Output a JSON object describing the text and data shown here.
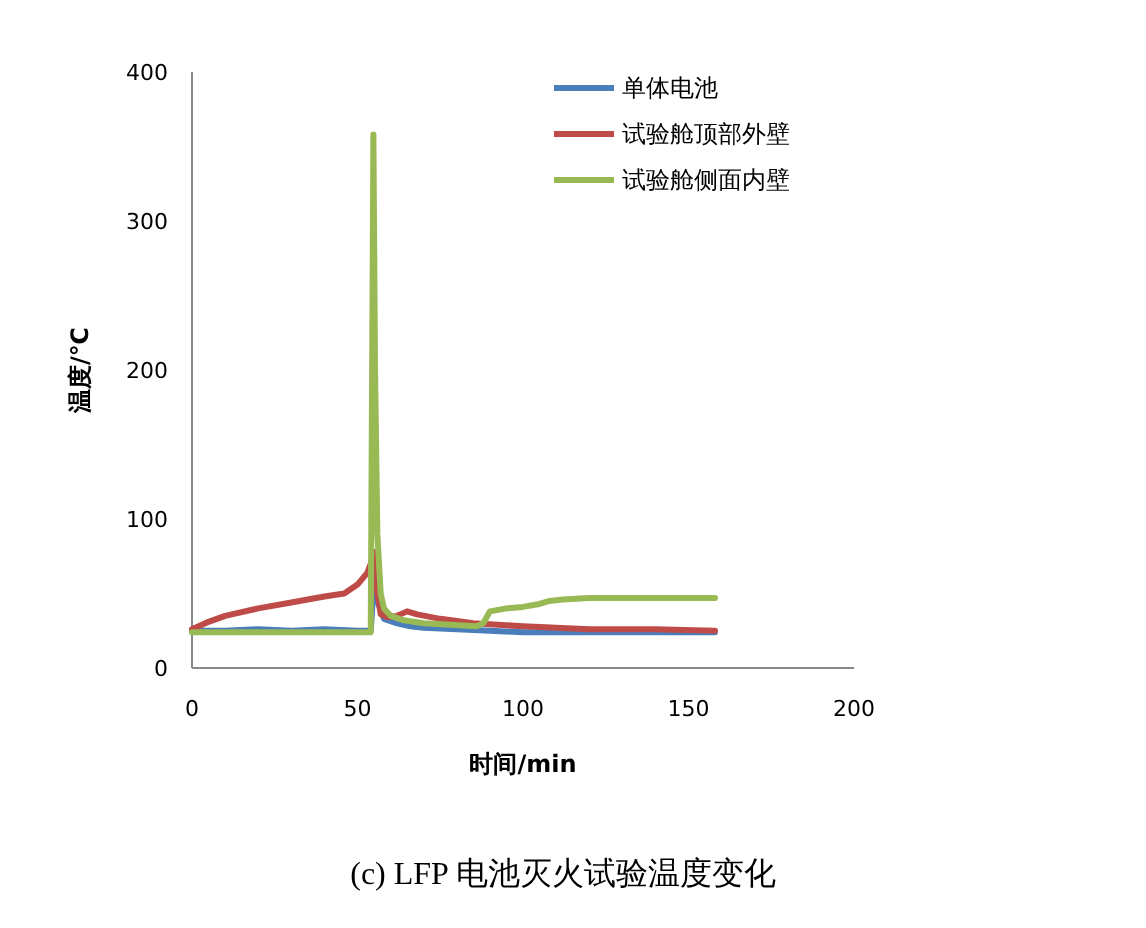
{
  "chart_data": {
    "type": "line",
    "title": "(c) LFP 电池灭火试验温度变化",
    "xlabel": "时间/min",
    "ylabel": "温度/℃",
    "xlim": [
      0,
      200
    ],
    "xticks": [
      0,
      50,
      100,
      150,
      200
    ],
    "ylim": [
      0,
      400
    ],
    "yticks": [
      0,
      100,
      200,
      300,
      400
    ],
    "grid": false,
    "legend": "top right",
    "marker": "none",
    "line_style": "solid",
    "series": [
      {
        "name": "单体电池",
        "color": "#4a7ebb",
        "x": [
          0,
          10,
          20,
          30,
          40,
          50,
          54,
          55,
          56,
          58,
          62,
          66,
          70,
          80,
          90,
          100,
          120,
          140,
          158
        ],
        "values": [
          25,
          25,
          26,
          25,
          26,
          25,
          25,
          60,
          45,
          33,
          30,
          28,
          27,
          26,
          25,
          24,
          24,
          24,
          24
        ]
      },
      {
        "name": "试验舱顶部外壁",
        "color": "#be4b48",
        "x": [
          0,
          5,
          10,
          20,
          30,
          40,
          46,
          50,
          53,
          54,
          55,
          56,
          57,
          59,
          62,
          65,
          68,
          75,
          85,
          100,
          110,
          120,
          140,
          158
        ],
        "values": [
          26,
          31,
          35,
          40,
          44,
          48,
          50,
          56,
          64,
          70,
          78,
          50,
          36,
          34,
          35,
          38,
          36,
          33,
          30,
          28,
          27,
          26,
          26,
          25
        ]
      },
      {
        "name": "试验舱侧面内壁",
        "color": "#98b954",
        "x": [
          0,
          10,
          20,
          30,
          40,
          50,
          54,
          54.8,
          55.3,
          56,
          57,
          58,
          60,
          64,
          70,
          78,
          86,
          88,
          90,
          95,
          100,
          105,
          108,
          112,
          120,
          130,
          140,
          150,
          158
        ],
        "values": [
          24,
          24,
          24,
          24,
          24,
          24,
          24,
          358,
          200,
          90,
          50,
          40,
          35,
          32,
          30,
          29,
          28,
          30,
          38,
          40,
          41,
          43,
          45,
          46,
          47,
          47,
          47,
          47,
          47
        ]
      }
    ]
  }
}
